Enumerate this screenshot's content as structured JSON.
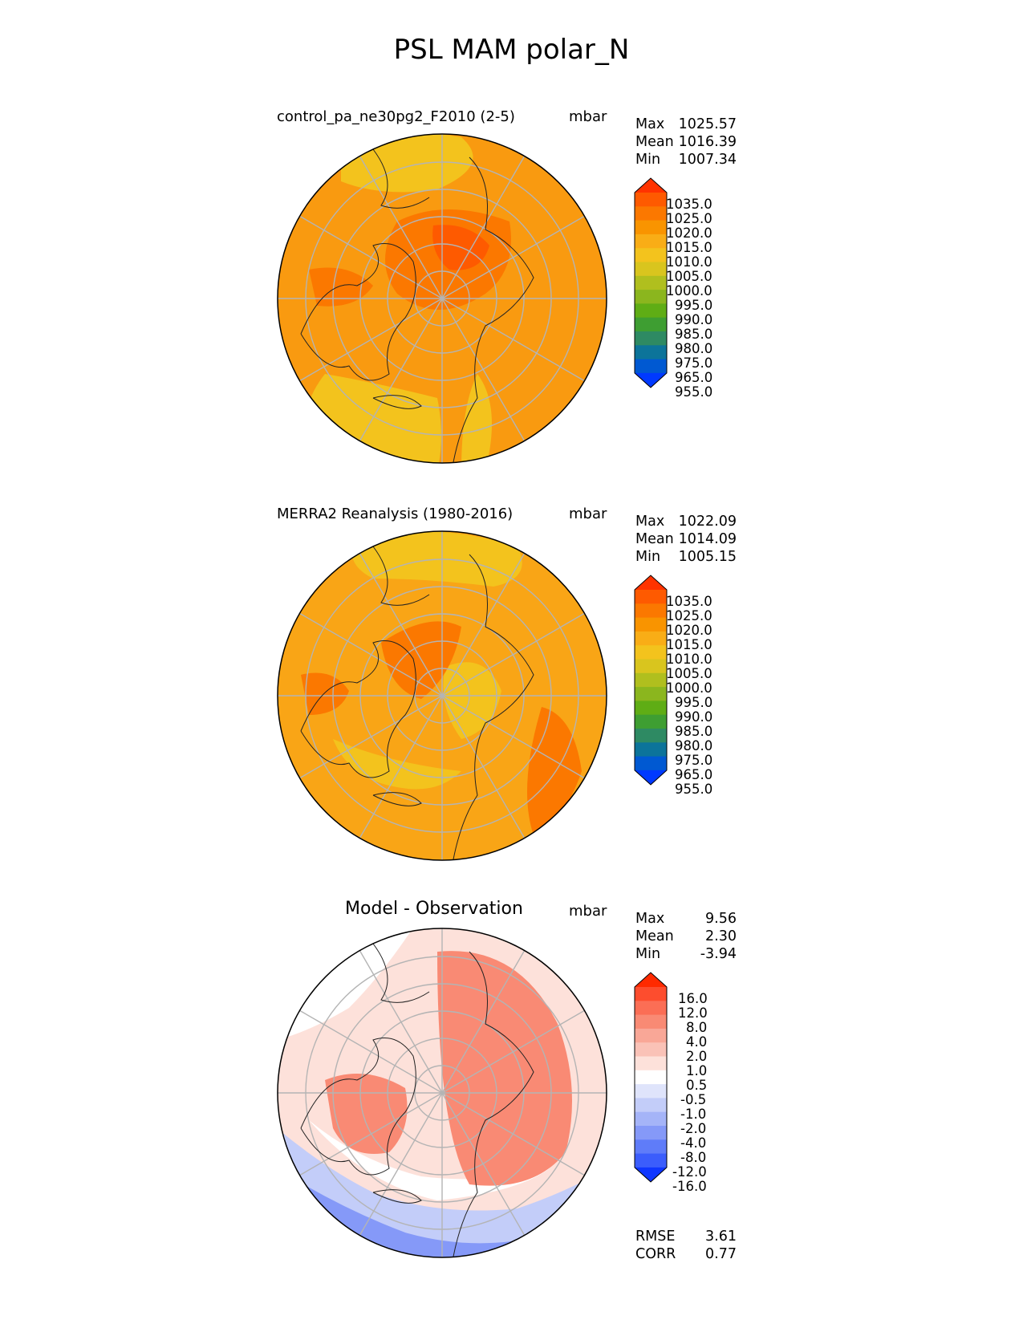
{
  "title": "PSL MAM polar_N",
  "panels": [
    {
      "id": "test",
      "title": "control_pa_ne30pg2_F2010 (2-5)",
      "units": "mbar",
      "stats": [
        {
          "label": "Max",
          "value": "1025.57"
        },
        {
          "label": "Mean",
          "value": "1016.39"
        },
        {
          "label": "Min",
          "value": "1007.34"
        }
      ],
      "colorbar": {
        "levels": [
          "1035.0",
          "1025.0",
          "1020.0",
          "1015.0",
          "1010.0",
          "1005.0",
          "1000.0",
          "995.0",
          "990.0",
          "985.0",
          "980.0",
          "975.0",
          "965.0",
          "955.0"
        ],
        "colors": [
          "#ff3300",
          "#fe5a00",
          "#fb7800",
          "#f99400",
          "#f9ad16",
          "#f3c31d",
          "#d9c51e",
          "#b0bf1e",
          "#8bb61e",
          "#5fad15",
          "#3e9e32",
          "#2e8a63",
          "#0c749a",
          "#0059d2",
          "#0039ff"
        ]
      }
    },
    {
      "id": "ref",
      "title": "MERRA2 Reanalysis (1980-2016)",
      "units": "mbar",
      "stats": [
        {
          "label": "Max",
          "value": "1022.09"
        },
        {
          "label": "Mean",
          "value": "1014.09"
        },
        {
          "label": "Min",
          "value": "1005.15"
        }
      ],
      "colorbar": {
        "levels": [
          "1035.0",
          "1025.0",
          "1020.0",
          "1015.0",
          "1010.0",
          "1005.0",
          "1000.0",
          "995.0",
          "990.0",
          "985.0",
          "980.0",
          "975.0",
          "965.0",
          "955.0"
        ],
        "colors": [
          "#ff3300",
          "#fe5a00",
          "#fb7800",
          "#f99400",
          "#f9ad16",
          "#f3c31d",
          "#d9c51e",
          "#b0bf1e",
          "#8bb61e",
          "#5fad15",
          "#3e9e32",
          "#2e8a63",
          "#0c749a",
          "#0059d2",
          "#0039ff"
        ]
      }
    },
    {
      "id": "diff",
      "title": "Model - Observation",
      "units": "mbar",
      "stats": [
        {
          "label": "Max",
          "value": "9.56"
        },
        {
          "label": "Mean",
          "value": "2.30"
        },
        {
          "label": "Min",
          "value": "-3.94"
        }
      ],
      "metrics": [
        {
          "label": "RMSE",
          "value": "3.61"
        },
        {
          "label": "CORR",
          "value": "0.77"
        }
      ],
      "colorbar": {
        "levels": [
          "16.0",
          "12.0",
          "8.0",
          "4.0",
          "2.0",
          "1.0",
          "0.5",
          "-0.5",
          "-1.0",
          "-2.0",
          "-4.0",
          "-8.0",
          "-12.0",
          "-16.0"
        ],
        "colors": [
          "#ff2a00",
          "#fd4d2e",
          "#fb6e55",
          "#f98a74",
          "#f9a797",
          "#fac2b7",
          "#fde1da",
          "#ffffff",
          "#dfe4fb",
          "#c3cdf9",
          "#a5b4f8",
          "#8599f8",
          "#5f7cf9",
          "#3b5dfc",
          "#0f36ff"
        ]
      }
    }
  ],
  "colors": {
    "map_test_base": "#f99a10",
    "map_ref_base": "#f9a516",
    "map_diff_base": "#fbb3a6",
    "graticule": "#b4b4b4",
    "coastline": "#222222"
  }
}
